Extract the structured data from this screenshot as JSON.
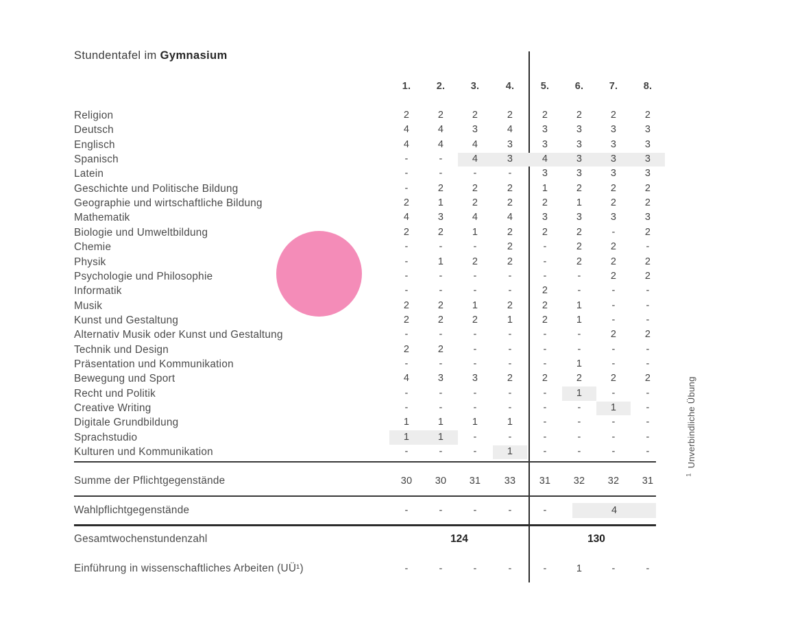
{
  "title": {
    "prefix": "Stundentafel im ",
    "bold": "Gymnasium"
  },
  "columns": [
    "1.",
    "2.",
    "3.",
    "4.",
    "5.",
    "6.",
    "7.",
    "8."
  ],
  "colors": {
    "accent_circle": "#F48CB8",
    "highlight": "#EDEDED",
    "line": "#2b2b2b"
  },
  "subjects": [
    {
      "label": "Religion",
      "values": [
        "2",
        "2",
        "2",
        "2",
        "2",
        "2",
        "2",
        "2"
      ]
    },
    {
      "label": "Deutsch",
      "values": [
        "4",
        "4",
        "3",
        "4",
        "3",
        "3",
        "3",
        "3"
      ]
    },
    {
      "label": "Englisch",
      "values": [
        "4",
        "4",
        "4",
        "3",
        "3",
        "3",
        "3",
        "3"
      ]
    },
    {
      "label": "Spanisch",
      "values": [
        "-",
        "-",
        "4",
        "3",
        "4",
        "3",
        "3",
        "3"
      ],
      "highlight": [
        3,
        8
      ]
    },
    {
      "label": "Latein",
      "values": [
        "-",
        "-",
        "-",
        "-",
        "3",
        "3",
        "3",
        "3"
      ]
    },
    {
      "label": "Geschichte und Politische Bildung",
      "values": [
        "-",
        "2",
        "2",
        "2",
        "1",
        "2",
        "2",
        "2"
      ]
    },
    {
      "label": "Geographie und wirtschaftliche Bildung",
      "values": [
        "2",
        "1",
        "2",
        "2",
        "2",
        "1",
        "2",
        "2"
      ]
    },
    {
      "label": "Mathematik",
      "values": [
        "4",
        "3",
        "4",
        "4",
        "3",
        "3",
        "3",
        "3"
      ]
    },
    {
      "label": "Biologie und Umweltbildung",
      "values": [
        "2",
        "2",
        "1",
        "2",
        "2",
        "2",
        "-",
        "2"
      ]
    },
    {
      "label": "Chemie",
      "values": [
        "-",
        "-",
        "-",
        "2",
        "-",
        "2",
        "2",
        "-"
      ]
    },
    {
      "label": "Physik",
      "values": [
        "-",
        "1",
        "2",
        "2",
        "-",
        "2",
        "2",
        "2"
      ]
    },
    {
      "label": "Psychologie und Philosophie",
      "values": [
        "-",
        "-",
        "-",
        "-",
        "-",
        "-",
        "2",
        "2"
      ]
    },
    {
      "label": "Informatik",
      "values": [
        "-",
        "-",
        "-",
        "-",
        "2",
        "-",
        "-",
        "-"
      ]
    },
    {
      "label": "Musik",
      "values": [
        "2",
        "2",
        "1",
        "2",
        "2",
        "1",
        "-",
        "-"
      ]
    },
    {
      "label": "Kunst und Gestaltung",
      "values": [
        "2",
        "2",
        "2",
        "1",
        "2",
        "1",
        "-",
        "-"
      ]
    },
    {
      "label": "Alternativ Musik oder Kunst und Gestaltung",
      "values": [
        "-",
        "-",
        "-",
        "-",
        "-",
        "-",
        "2",
        "2"
      ]
    },
    {
      "label": "Technik und Design",
      "values": [
        "2",
        "2",
        "-",
        "-",
        "-",
        "-",
        "-",
        "-"
      ]
    },
    {
      "label": "Präsentation und Kommunikation",
      "values": [
        "-",
        "-",
        "-",
        "-",
        "-",
        "1",
        "-",
        "-"
      ]
    },
    {
      "label": "Bewegung und Sport",
      "values": [
        "4",
        "3",
        "3",
        "2",
        "2",
        "2",
        "2",
        "2"
      ]
    },
    {
      "label": "Recht und Politik",
      "values": [
        "-",
        "-",
        "-",
        "-",
        "-",
        "1",
        "-",
        "-"
      ],
      "highlight": [
        6,
        6
      ]
    },
    {
      "label": "Creative Writing",
      "values": [
        "-",
        "-",
        "-",
        "-",
        "-",
        "-",
        "1",
        "-"
      ],
      "highlight": [
        7,
        7
      ]
    },
    {
      "label": "Digitale Grundbildung",
      "values": [
        "1",
        "1",
        "1",
        "1",
        "-",
        "-",
        "-",
        "-"
      ]
    },
    {
      "label": "Sprachstudio",
      "values": [
        "1",
        "1",
        "-",
        "-",
        "-",
        "-",
        "-",
        "-"
      ],
      "highlight": [
        1,
        2
      ]
    },
    {
      "label": "Kulturen und Kommunikation",
      "values": [
        "-",
        "-",
        "-",
        "1",
        "-",
        "-",
        "-",
        "-"
      ],
      "highlight": [
        4,
        4
      ]
    }
  ],
  "summary": {
    "summe": {
      "label": "Summe der Pflichtgegenstände",
      "values": [
        "30",
        "30",
        "31",
        "33",
        "31",
        "32",
        "32",
        "31"
      ]
    },
    "wahlpflicht": {
      "label": "Wahlpflichtgegenstände",
      "values": [
        "-",
        "-",
        "-",
        "-",
        "-"
      ],
      "highlight_value": "4"
    },
    "gesamt": {
      "label": "Gesamtwochenstundenzahl",
      "left_total": "124",
      "right_total": "130"
    },
    "einfuehrung": {
      "label": "Einführung in wissenschaftliches Arbeiten (UÜ¹)",
      "values": [
        "-",
        "-",
        "-",
        "-",
        "-",
        "1",
        "-",
        "-"
      ]
    }
  },
  "side_note": {
    "sup": "1",
    "text": "Unverbindliche Übung"
  }
}
